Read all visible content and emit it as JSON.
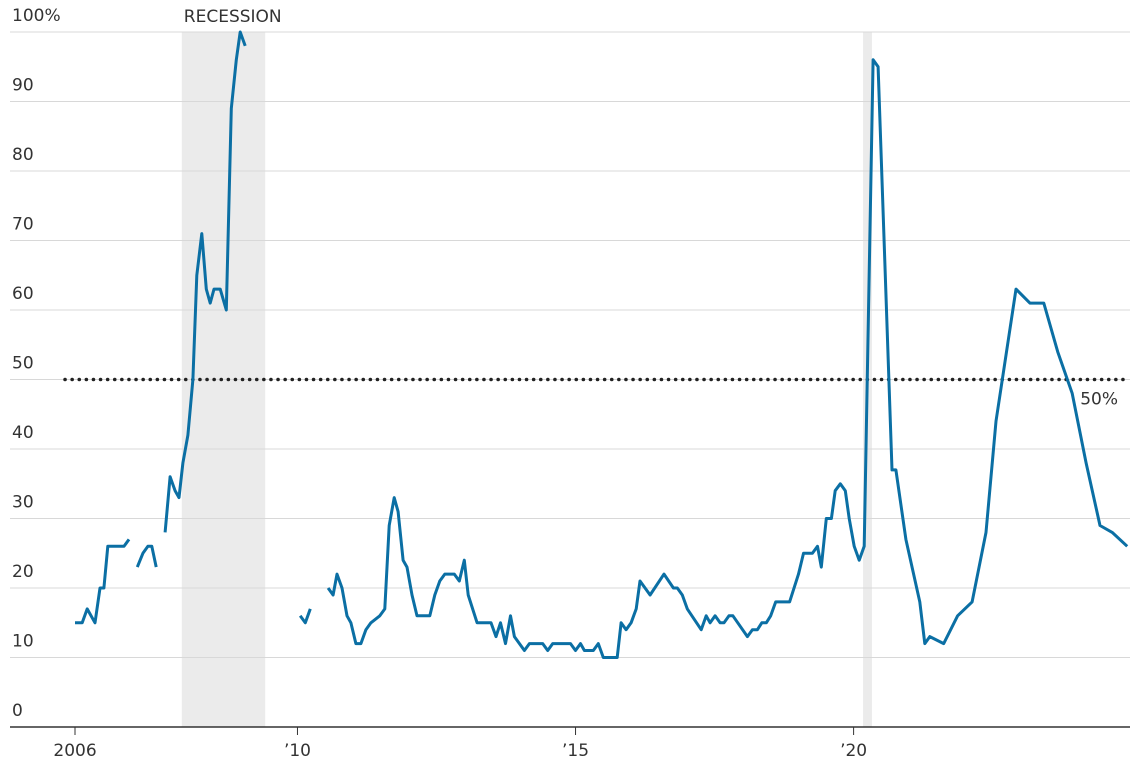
{
  "chart_data": {
    "type": "line",
    "x": [
      2006.0,
      2006.13,
      2006.22,
      2006.36,
      2006.45,
      2006.52,
      2006.59,
      2006.81,
      2006.88,
      2006.97,
      2007.05,
      2007.12,
      2007.22,
      2007.31,
      2007.38,
      2007.46,
      2007.55,
      2007.62,
      2007.71,
      2007.8,
      2007.87,
      2007.94,
      2008.03,
      2008.12,
      2008.19,
      2008.28,
      2008.36,
      2008.43,
      2008.5,
      2008.61,
      2008.72,
      2008.81,
      2008.9,
      2008.97,
      2009.06,
      2009.5,
      2010.05,
      2010.14,
      2010.23,
      2010.4,
      2010.55,
      2010.64,
      2010.71,
      2010.8,
      2010.89,
      2010.96,
      2011.05,
      2011.14,
      2011.23,
      2011.32,
      2011.48,
      2011.57,
      2011.65,
      2011.74,
      2011.81,
      2011.9,
      2011.97,
      2012.06,
      2012.15,
      2012.38,
      2012.47,
      2012.56,
      2012.65,
      2012.82,
      2012.91,
      2013.0,
      2013.07,
      2013.23,
      2013.48,
      2013.57,
      2013.65,
      2013.74,
      2013.83,
      2013.9,
      2014.08,
      2014.17,
      2014.41,
      2014.5,
      2014.59,
      2014.91,
      2015.0,
      2015.09,
      2015.16,
      2015.32,
      2015.41,
      2015.5,
      2015.75,
      2015.82,
      2015.91,
      2016.0,
      2016.09,
      2016.16,
      2016.34,
      2016.59,
      2016.76,
      2016.83,
      2016.92,
      2017.01,
      2017.26,
      2017.35,
      2017.42,
      2017.51,
      2017.6,
      2017.67,
      2017.76,
      2017.83,
      2018.09,
      2018.18,
      2018.27,
      2018.35,
      2018.43,
      2018.51,
      2018.6,
      2018.85,
      2019.01,
      2019.1,
      2019.26,
      2019.35,
      2019.42,
      2019.51,
      2019.6,
      2019.67,
      2019.76,
      2019.85,
      2019.92,
      2020.01,
      2020.1,
      2020.19,
      2020.35,
      2020.44,
      2020.69,
      2020.76,
      2020.94,
      2021.19,
      2021.28,
      2021.37,
      2021.62,
      2021.87,
      2022.13,
      2022.38,
      2022.56,
      2022.92,
      2023.17,
      2023.42,
      2023.67,
      2023.93,
      2024.18,
      2024.43,
      2024.65,
      2024.92
    ],
    "series": [
      {
        "color": "#0b6fa4",
        "values": [
          15,
          15,
          17,
          15,
          20,
          20,
          26,
          26,
          26,
          27,
          null,
          23,
          25,
          26,
          26,
          23,
          null,
          28,
          36,
          34,
          33,
          38,
          42,
          50,
          65,
          71,
          63,
          61,
          63,
          63,
          60,
          89,
          96,
          100,
          98,
          null,
          16,
          15,
          17,
          null,
          20,
          19,
          22,
          20,
          16,
          15,
          12,
          12,
          14,
          15,
          16,
          17,
          29,
          33,
          31,
          24,
          23,
          19,
          16,
          16,
          19,
          21,
          22,
          22,
          21,
          24,
          19,
          15,
          15,
          13,
          15,
          12,
          16,
          13,
          11,
          12,
          12,
          11,
          12,
          12,
          11,
          12,
          11,
          11,
          12,
          10,
          10,
          15,
          14,
          15,
          17,
          21,
          19,
          22,
          20,
          20,
          19,
          17,
          14,
          16,
          15,
          16,
          15,
          15,
          16,
          16,
          13,
          14,
          14,
          15,
          15,
          16,
          18,
          18,
          22,
          25,
          25,
          26,
          23,
          30,
          30,
          34,
          35,
          34,
          30,
          26,
          24,
          26,
          96,
          95,
          37,
          37,
          27,
          18,
          12,
          13,
          12,
          16,
          18,
          28,
          44,
          63,
          61,
          61,
          54,
          48,
          38,
          29,
          28,
          26
        ]
      }
    ],
    "xlim": [
      2005.82,
      2024.97
    ],
    "xticks": [
      2006,
      {
        "value": 2010,
        "label": "’10"
      },
      {
        "value": 2015,
        "label": "’15"
      },
      {
        "value": 2020,
        "label": "’20"
      }
    ],
    "ylim": [
      0,
      100
    ],
    "yticks": [
      0,
      10,
      20,
      30,
      40,
      50,
      60,
      70,
      80,
      90,
      {
        "value": 100,
        "label": "100%"
      }
    ],
    "grid": true,
    "shaded_periods": [
      {
        "start": 2007.92,
        "end": 2009.42,
        "label": "RECESSION"
      },
      {
        "start": 2020.17,
        "end": 2020.33
      }
    ],
    "reference_line": {
      "value": 50,
      "label": "50%"
    }
  }
}
